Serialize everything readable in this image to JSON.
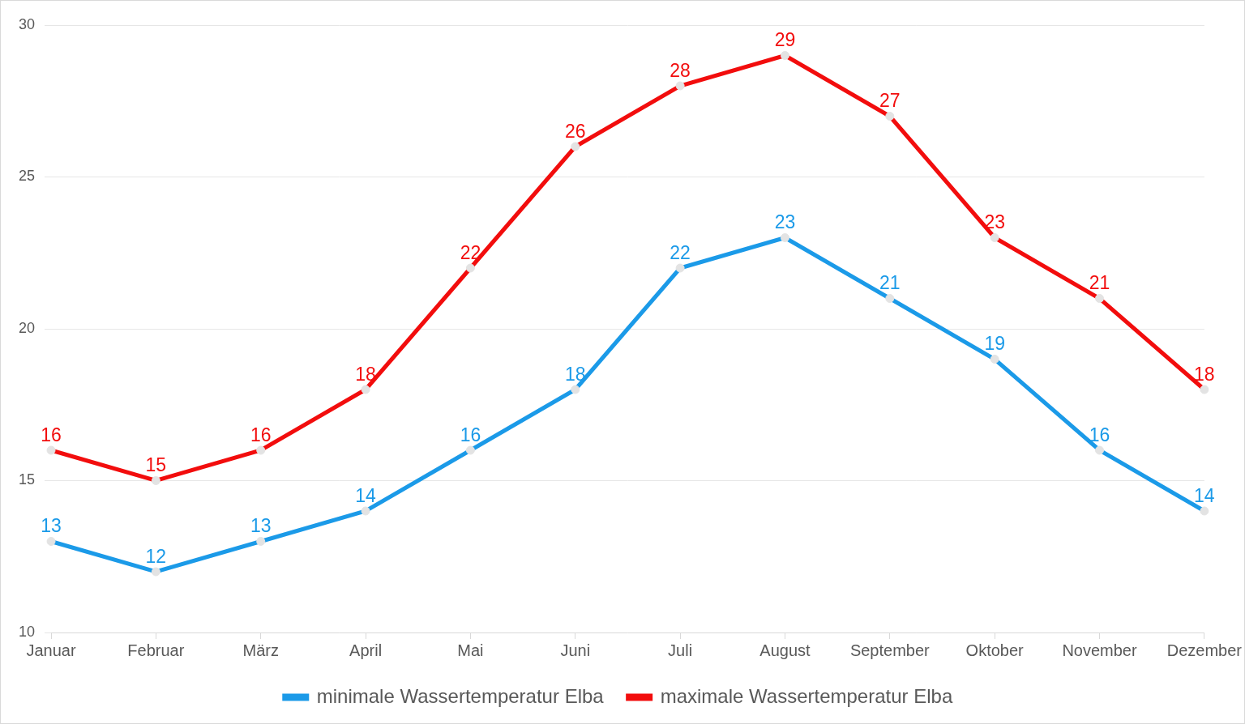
{
  "chart_data": {
    "type": "line",
    "categories": [
      "Januar",
      "Februar",
      "März",
      "April",
      "Mai",
      "Juni",
      "Juli",
      "August",
      "September",
      "Oktober",
      "November",
      "Dezember"
    ],
    "series": [
      {
        "name": "minimale Wassertemperatur Elba",
        "color": "#1b9ae8",
        "marker": "circle",
        "values": [
          13,
          12,
          13,
          14,
          16,
          18,
          22,
          23,
          21,
          19,
          16,
          14
        ]
      },
      {
        "name": "maximale Wassertemperatur Elba",
        "color": "#f20d0d",
        "marker": "circle",
        "values": [
          16,
          15,
          16,
          18,
          22,
          26,
          28,
          29,
          27,
          23,
          21,
          18
        ]
      }
    ],
    "ylim": [
      10,
      30
    ],
    "yticks": [
      10,
      15,
      20,
      25,
      30
    ],
    "grid": true,
    "legend": "bottom",
    "data_labels": true
  }
}
